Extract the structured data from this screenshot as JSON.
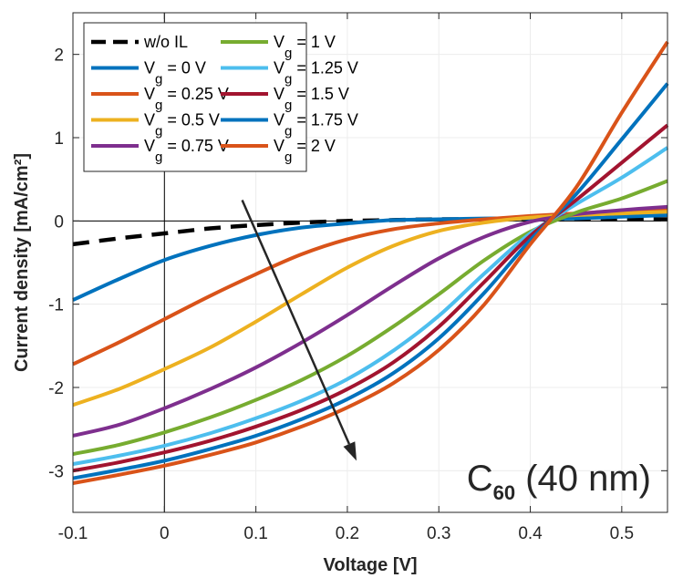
{
  "chart_data": {
    "type": "line",
    "xlabel": "Voltage [V]",
    "ylabel": "Current density [mA/cm²]",
    "xlim": [
      -0.1,
      0.55
    ],
    "ylim": [
      -3.5,
      2.5
    ],
    "xticks": [
      -0.1,
      0,
      0.1,
      0.2,
      0.3,
      0.4,
      0.5
    ],
    "xtick_labels": [
      "-0.1",
      "0",
      "0.1",
      "0.2",
      "0.3",
      "0.4",
      "0.5"
    ],
    "yticks": [
      -3,
      -2,
      -1,
      0,
      1,
      2
    ],
    "ytick_labels": [
      "-3",
      "-2",
      "-1",
      "0",
      "1",
      "2"
    ],
    "grid": true,
    "legend_position": "top-left",
    "annotation": {
      "main": "C",
      "sub": "60",
      "rest": " (40 nm)"
    },
    "arrow": {
      "from": [
        0.085,
        0.25
      ],
      "to": [
        0.21,
        -2.88
      ]
    },
    "series": [
      {
        "name": "w/o IL",
        "color": "#000000",
        "dashed": true,
        "x": [
          -0.1,
          -0.05,
          0,
          0.05,
          0.1,
          0.15,
          0.2,
          0.25,
          0.3,
          0.35,
          0.4,
          0.45,
          0.5,
          0.55
        ],
        "y": [
          -0.28,
          -0.21,
          -0.15,
          -0.09,
          -0.05,
          -0.02,
          0.0,
          0.01,
          0.02,
          0.02,
          0.02,
          0.02,
          0.02,
          0.02
        ]
      },
      {
        "name": "V_g = 0 V",
        "color": "#0072BD",
        "x": [
          -0.1,
          -0.05,
          0,
          0.05,
          0.1,
          0.15,
          0.2,
          0.25,
          0.3,
          0.35,
          0.4,
          0.45,
          0.5,
          0.55
        ],
        "y": [
          -0.95,
          -0.7,
          -0.47,
          -0.3,
          -0.17,
          -0.08,
          -0.03,
          0.01,
          0.02,
          0.03,
          0.03,
          0.03,
          0.05,
          0.07
        ]
      },
      {
        "name": "V_g = 0.25 V",
        "color": "#D95319",
        "x": [
          -0.1,
          -0.05,
          0,
          0.05,
          0.1,
          0.15,
          0.2,
          0.25,
          0.3,
          0.35,
          0.4,
          0.45,
          0.5,
          0.55
        ],
        "y": [
          -1.72,
          -1.46,
          -1.18,
          -0.9,
          -0.64,
          -0.4,
          -0.22,
          -0.1,
          -0.03,
          0.02,
          0.06,
          0.09,
          0.12,
          0.15
        ]
      },
      {
        "name": "V_g = 0.5 V",
        "color": "#EDB120",
        "x": [
          -0.1,
          -0.05,
          0,
          0.05,
          0.1,
          0.15,
          0.2,
          0.25,
          0.3,
          0.35,
          0.4,
          0.45,
          0.5,
          0.55
        ],
        "y": [
          -2.21,
          -2.02,
          -1.78,
          -1.52,
          -1.21,
          -0.88,
          -0.56,
          -0.3,
          -0.12,
          -0.02,
          0.04,
          0.07,
          0.09,
          0.11
        ]
      },
      {
        "name": "V_g = 0.75 V",
        "color": "#7E2F8E",
        "x": [
          -0.1,
          -0.05,
          0,
          0.05,
          0.1,
          0.15,
          0.2,
          0.25,
          0.3,
          0.35,
          0.4,
          0.45,
          0.5,
          0.55
        ],
        "y": [
          -2.58,
          -2.45,
          -2.25,
          -2.02,
          -1.76,
          -1.46,
          -1.13,
          -0.78,
          -0.45,
          -0.19,
          -0.01,
          0.08,
          0.13,
          0.17
        ]
      },
      {
        "name": "V_g = 1 V",
        "color": "#77AC30",
        "x": [
          -0.1,
          -0.05,
          0,
          0.05,
          0.1,
          0.15,
          0.2,
          0.25,
          0.3,
          0.35,
          0.4,
          0.45,
          0.5,
          0.55
        ],
        "y": [
          -2.8,
          -2.69,
          -2.54,
          -2.36,
          -2.15,
          -1.91,
          -1.62,
          -1.27,
          -0.88,
          -0.47,
          -0.13,
          0.1,
          0.27,
          0.48
        ]
      },
      {
        "name": "V_g = 1.25 V",
        "color": "#4DBEEE",
        "x": [
          -0.1,
          -0.05,
          0,
          0.05,
          0.1,
          0.15,
          0.2,
          0.25,
          0.3,
          0.35,
          0.4,
          0.45,
          0.5,
          0.55
        ],
        "y": [
          -2.92,
          -2.82,
          -2.7,
          -2.55,
          -2.37,
          -2.16,
          -1.9,
          -1.56,
          -1.14,
          -0.63,
          -0.15,
          0.2,
          0.52,
          0.88
        ]
      },
      {
        "name": "V_g = 1.5 V",
        "color": "#A2142F",
        "x": [
          -0.1,
          -0.05,
          0,
          0.05,
          0.1,
          0.15,
          0.2,
          0.25,
          0.3,
          0.35,
          0.4,
          0.45,
          0.5,
          0.55
        ],
        "y": [
          -3.0,
          -2.9,
          -2.78,
          -2.64,
          -2.47,
          -2.27,
          -2.02,
          -1.7,
          -1.27,
          -0.73,
          -0.18,
          0.25,
          0.7,
          1.15
        ]
      },
      {
        "name": "V_g = 1.75 V",
        "color": "#0072BD",
        "x": [
          -0.1,
          -0.05,
          0,
          0.05,
          0.1,
          0.15,
          0.2,
          0.25,
          0.3,
          0.35,
          0.4,
          0.45,
          0.5,
          0.55
        ],
        "y": [
          -3.09,
          -2.99,
          -2.88,
          -2.74,
          -2.58,
          -2.38,
          -2.14,
          -1.83,
          -1.41,
          -0.86,
          -0.23,
          0.32,
          0.98,
          1.65
        ]
      },
      {
        "name": "V_g = 2 V",
        "color": "#D95319",
        "x": [
          -0.1,
          -0.05,
          0,
          0.05,
          0.1,
          0.15,
          0.2,
          0.25,
          0.3,
          0.35,
          0.4,
          0.45,
          0.5,
          0.55
        ],
        "y": [
          -3.15,
          -3.05,
          -2.94,
          -2.81,
          -2.66,
          -2.47,
          -2.24,
          -1.95,
          -1.55,
          -1.0,
          -0.28,
          0.4,
          1.3,
          2.15
        ]
      }
    ]
  }
}
